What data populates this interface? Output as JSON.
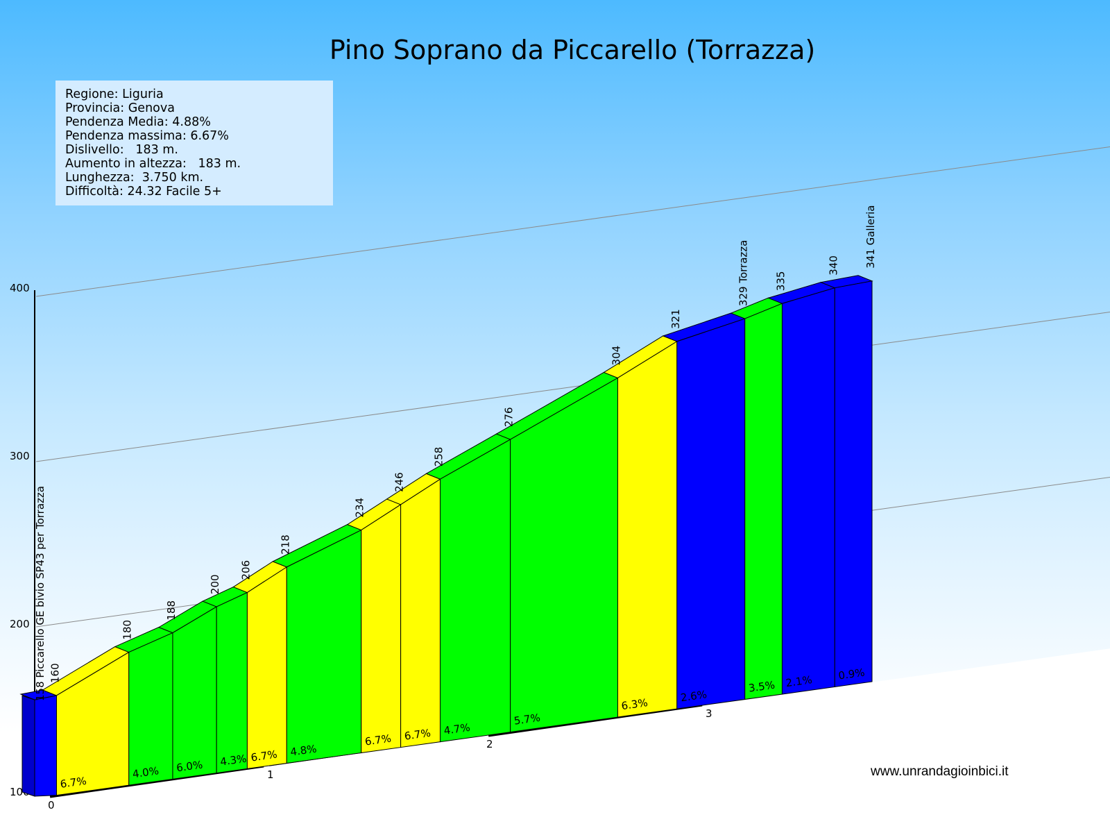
{
  "title": "Pino Soprano da Piccarello (Torrazza)",
  "info_lines": [
    "Regione: Liguria",
    "Provincia: Genova",
    "Pendenza Media: 4.88%",
    "Pendenza massima: 6.67%",
    "Dislivello:   183 m.",
    "Aumento in altezza:   183 m.",
    "Lunghezza:  3.750 km.",
    "Difficoltà: 24.32 Facile 5+"
  ],
  "website": "www.unrandagioinbici.it",
  "colors": {
    "yellow": "#ffff00",
    "green": "#00ff00",
    "blue": "#0000ff",
    "sky": "#4dbaff"
  },
  "chart_data": {
    "type": "area",
    "x_unit": "km",
    "y_unit": "m",
    "ylim": [
      100,
      400
    ],
    "yticks": [
      100,
      200,
      300,
      400
    ],
    "xticks": [
      0,
      1,
      2,
      3
    ],
    "grid": true,
    "start_label": "158 Piccarello GE bivio SP43 per Torrazza",
    "start_elevation": 158,
    "points": [
      {
        "km": 0.03,
        "elev": 160,
        "label": "160"
      },
      {
        "km": 0.36,
        "elev": 180,
        "label": "180"
      },
      {
        "km": 0.56,
        "elev": 188,
        "label": "188"
      },
      {
        "km": 0.76,
        "elev": 200,
        "label": "200"
      },
      {
        "km": 0.9,
        "elev": 206,
        "label": "206"
      },
      {
        "km": 1.08,
        "elev": 218,
        "label": "218"
      },
      {
        "km": 1.42,
        "elev": 234,
        "label": "234"
      },
      {
        "km": 1.6,
        "elev": 246,
        "label": "246"
      },
      {
        "km": 1.78,
        "elev": 258,
        "label": "258"
      },
      {
        "km": 2.1,
        "elev": 276,
        "label": "276"
      },
      {
        "km": 2.59,
        "elev": 304,
        "label": "304"
      },
      {
        "km": 2.86,
        "elev": 321,
        "label": "321"
      },
      {
        "km": 3.17,
        "elev": 329,
        "label": "329 Torrazza"
      },
      {
        "km": 3.34,
        "elev": 335,
        "label": "335"
      },
      {
        "km": 3.58,
        "elev": 340,
        "label": "340"
      },
      {
        "km": 3.75,
        "elev": 341,
        "label": "341 Galleria"
      }
    ],
    "segments": [
      {
        "grade": "",
        "color": "blue"
      },
      {
        "grade": "6.7%",
        "color": "yellow"
      },
      {
        "grade": "4.0%",
        "color": "green"
      },
      {
        "grade": "6.0%",
        "color": "green"
      },
      {
        "grade": "4.3%",
        "color": "green"
      },
      {
        "grade": "6.7%",
        "color": "yellow"
      },
      {
        "grade": "4.8%",
        "color": "green"
      },
      {
        "grade": "6.7%",
        "color": "yellow"
      },
      {
        "grade": "6.7%",
        "color": "yellow"
      },
      {
        "grade": "4.7%",
        "color": "green"
      },
      {
        "grade": "5.7%",
        "color": "green"
      },
      {
        "grade": "6.3%",
        "color": "yellow"
      },
      {
        "grade": "2.6%",
        "color": "blue"
      },
      {
        "grade": "3.5%",
        "color": "green"
      },
      {
        "grade": "2.1%",
        "color": "blue"
      },
      {
        "grade": "0.9%",
        "color": "blue"
      }
    ]
  }
}
